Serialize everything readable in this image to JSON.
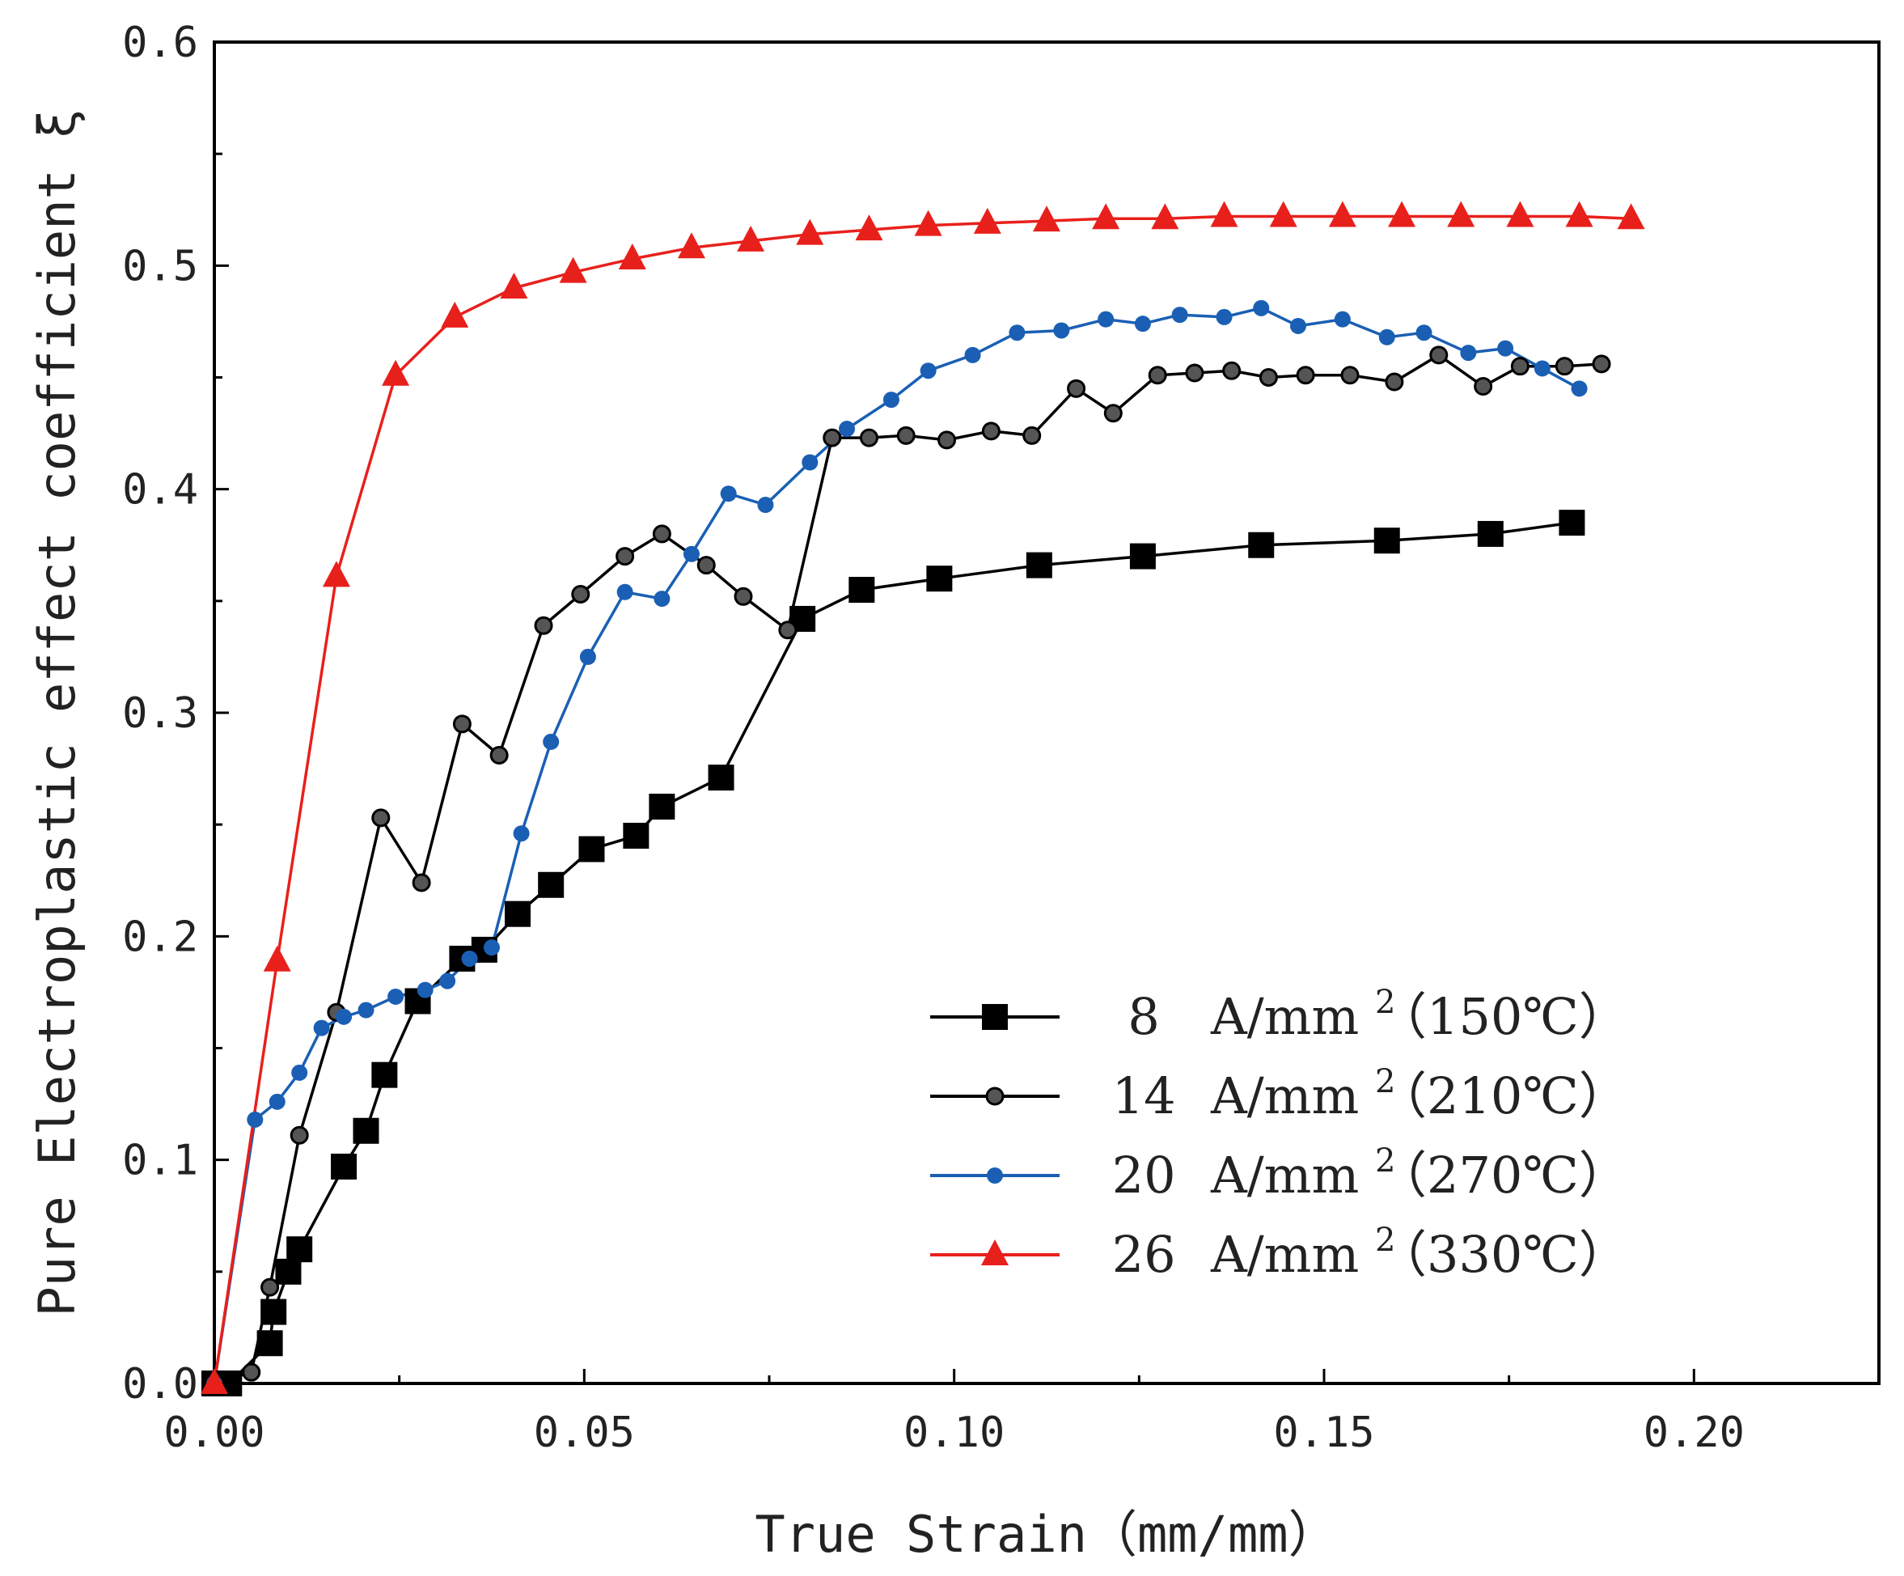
{
  "chart_data": {
    "type": "line",
    "title": "",
    "xlabel": "True Strain（mm/mm）",
    "ylabel": "Pure Electroplastic effect coefficient ξ",
    "xlim": [
      0,
      0.225
    ],
    "ylim": [
      0,
      0.6
    ],
    "x_ticks": [
      0,
      0.05,
      0.1,
      0.15,
      0.2
    ],
    "x_tick_labels": [
      "0.00",
      "0.05",
      "0.10",
      "0.15",
      "0.20"
    ],
    "y_ticks": [
      0,
      0.1,
      0.2,
      0.3,
      0.4,
      0.5,
      0.6
    ],
    "y_tick_labels": [
      "0.0",
      "0.1",
      "0.2",
      "0.3",
      "0.4",
      "0.5",
      "0.6"
    ],
    "grid": false,
    "legend_position": "bottom-right",
    "series": [
      {
        "name": "8 A/mm2 (150℃)",
        "legend_value": "8",
        "legend_unit": "A/mm",
        "legend_sup": "2",
        "legend_temp": "（150℃）",
        "color": "#000000",
        "marker": "square",
        "x": [
          0.0,
          0.002,
          0.0075,
          0.008,
          0.01,
          0.0115,
          0.0175,
          0.0205,
          0.023,
          0.0275,
          0.0335,
          0.0365,
          0.041,
          0.0455,
          0.051,
          0.057,
          0.0605,
          0.0685,
          0.0795,
          0.0875,
          0.098,
          0.1115,
          0.1255,
          0.1415,
          0.1585,
          0.1725,
          0.1835
        ],
        "y": [
          0.0,
          0.0,
          0.018,
          0.032,
          0.05,
          0.06,
          0.097,
          0.113,
          0.138,
          0.171,
          0.19,
          0.194,
          0.21,
          0.223,
          0.239,
          0.245,
          0.258,
          0.271,
          0.342,
          0.355,
          0.36,
          0.366,
          0.37,
          0.375,
          0.377,
          0.38,
          0.385
        ]
      },
      {
        "name": "14 A/mm2 (210℃)",
        "legend_value": "14",
        "legend_unit": "A/mm",
        "legend_sup": "2",
        "legend_temp": "（210℃）",
        "color": "#000000",
        "marker": "sphere",
        "x": [
          0.0,
          0.005,
          0.0075,
          0.0115,
          0.0165,
          0.0225,
          0.028,
          0.0335,
          0.0385,
          0.0445,
          0.0495,
          0.0555,
          0.0605,
          0.0665,
          0.0715,
          0.0775,
          0.0835,
          0.0885,
          0.0935,
          0.099,
          0.105,
          0.1105,
          0.1165,
          0.1215,
          0.1275,
          0.1325,
          0.1375,
          0.1425,
          0.1475,
          0.1535,
          0.1595,
          0.1655,
          0.1715,
          0.1765,
          0.1825,
          0.1875
        ],
        "y": [
          0.0,
          0.005,
          0.043,
          0.111,
          0.166,
          0.253,
          0.224,
          0.295,
          0.281,
          0.339,
          0.353,
          0.37,
          0.38,
          0.366,
          0.352,
          0.337,
          0.423,
          0.423,
          0.424,
          0.422,
          0.426,
          0.424,
          0.445,
          0.434,
          0.451,
          0.452,
          0.453,
          0.45,
          0.451,
          0.451,
          0.448,
          0.46,
          0.446,
          0.455,
          0.455,
          0.456
        ]
      },
      {
        "name": "20 A/mm2 (270℃)",
        "legend_value": "20",
        "legend_unit": "A/mm",
        "legend_sup": "2",
        "legend_temp": "（270℃）",
        "color": "#1a5fb4",
        "marker": "dot",
        "x": [
          0.0,
          0.0055,
          0.0085,
          0.0115,
          0.0145,
          0.0175,
          0.0205,
          0.0245,
          0.0285,
          0.0315,
          0.0345,
          0.0375,
          0.0415,
          0.0455,
          0.0505,
          0.0555,
          0.0605,
          0.0645,
          0.0695,
          0.0745,
          0.0805,
          0.0855,
          0.0915,
          0.0965,
          0.1025,
          0.1085,
          0.1145,
          0.1205,
          0.1255,
          0.1305,
          0.1365,
          0.1415,
          0.1465,
          0.1525,
          0.1585,
          0.1635,
          0.1695,
          0.1745,
          0.1795,
          0.1845
        ],
        "y": [
          0.0,
          0.118,
          0.126,
          0.139,
          0.159,
          0.164,
          0.167,
          0.173,
          0.176,
          0.18,
          0.19,
          0.195,
          0.246,
          0.287,
          0.325,
          0.354,
          0.351,
          0.371,
          0.398,
          0.393,
          0.412,
          0.427,
          0.44,
          0.453,
          0.46,
          0.47,
          0.471,
          0.476,
          0.474,
          0.478,
          0.477,
          0.481,
          0.473,
          0.476,
          0.468,
          0.47,
          0.461,
          0.463,
          0.454,
          0.445
        ]
      },
      {
        "name": "26 A/mm2 (330℃)",
        "legend_value": "26",
        "legend_unit": "A/mm",
        "legend_sup": "2",
        "legend_temp": "（330℃）",
        "color": "#e8201c",
        "marker": "triangle",
        "x": [
          0.0,
          0.0085,
          0.0165,
          0.0245,
          0.0325,
          0.0405,
          0.0485,
          0.0565,
          0.0645,
          0.0725,
          0.0805,
          0.0885,
          0.0965,
          0.1045,
          0.1125,
          0.1205,
          0.1285,
          0.1365,
          0.1445,
          0.1525,
          0.1605,
          0.1685,
          0.1765,
          0.1845,
          0.1915
        ],
        "y": [
          0.0,
          0.189,
          0.361,
          0.451,
          0.477,
          0.49,
          0.497,
          0.503,
          0.508,
          0.511,
          0.514,
          0.516,
          0.518,
          0.519,
          0.52,
          0.521,
          0.521,
          0.522,
          0.522,
          0.522,
          0.522,
          0.522,
          0.522,
          0.522,
          0.521
        ]
      }
    ]
  }
}
